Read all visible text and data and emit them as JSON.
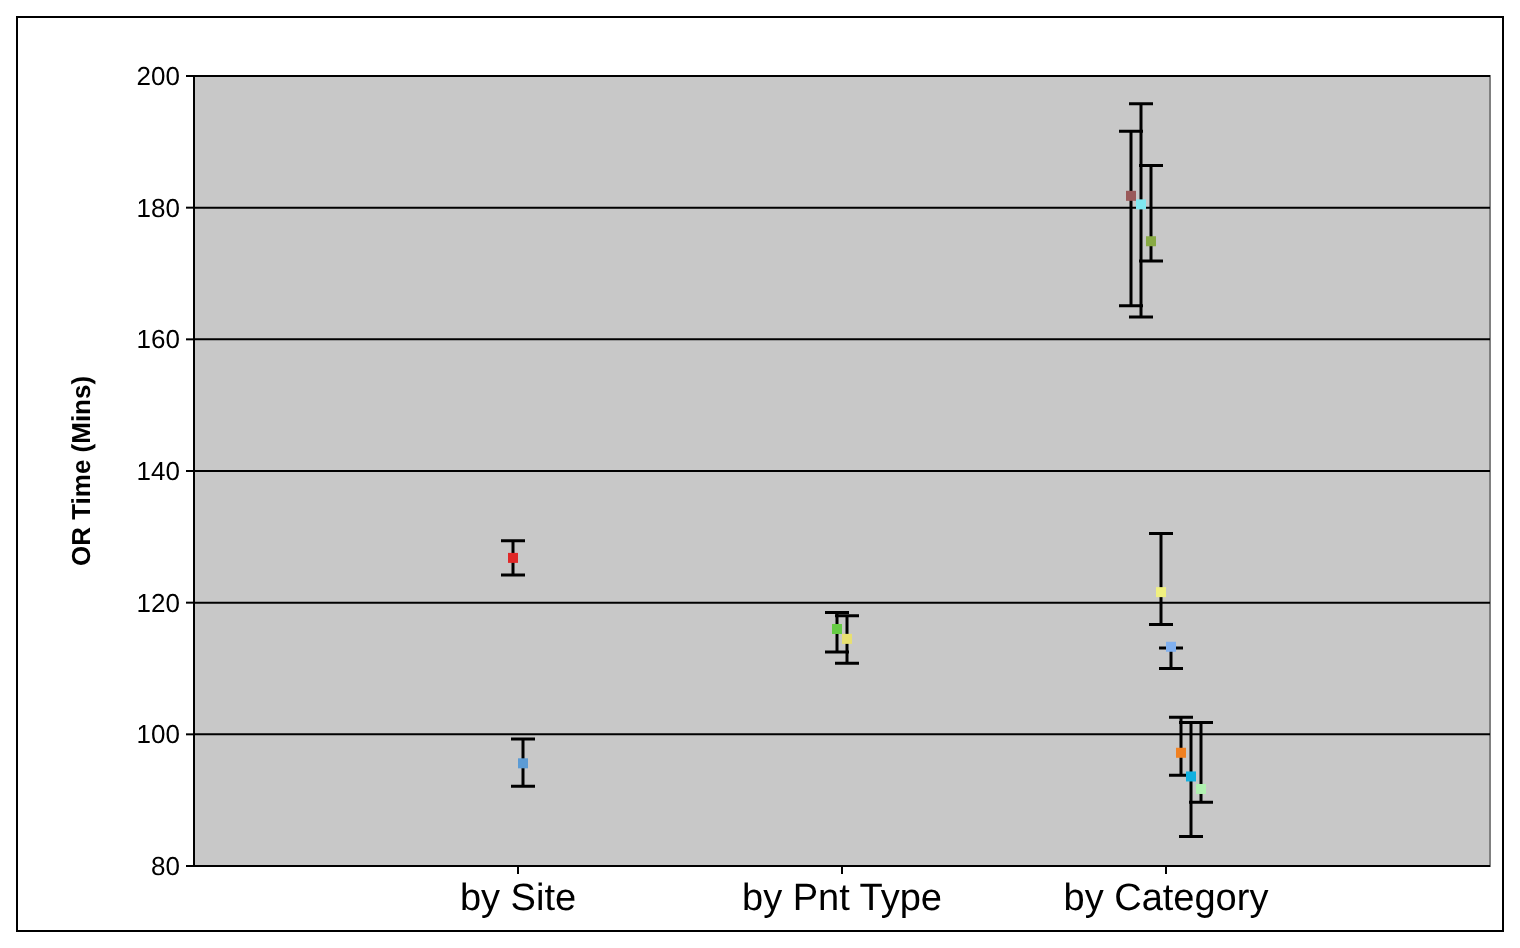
{
  "chart_data": {
    "type": "scatter",
    "ylabel": "OR Time (Mins)",
    "categories": [
      "by Site",
      "by Pnt Type",
      "by Category"
    ],
    "ylim": [
      80,
      200
    ],
    "yticks": [
      80,
      100,
      120,
      140,
      160,
      180,
      200
    ],
    "grid": "y",
    "marker": "square",
    "series": [
      {
        "color": "#e02828",
        "x": [
          "by Site"
        ],
        "values": [
          126.8
        ],
        "errors": [
          [
            124.2,
            129.4
          ]
        ]
      },
      {
        "color": "#5b9bd5",
        "x": [
          "by Site"
        ],
        "values": [
          95.6
        ],
        "errors": [
          [
            92.1,
            99.3
          ]
        ]
      },
      {
        "color": "#66cc44",
        "x": [
          "by Pnt Type"
        ],
        "values": [
          116
        ],
        "errors": [
          [
            112.5,
            118.5
          ]
        ]
      },
      {
        "color": "#e8e070",
        "x": [
          "by Pnt Type"
        ],
        "values": [
          114.5
        ],
        "errors": [
          [
            110.8,
            118
          ]
        ]
      },
      {
        "color": "#9a5a5a",
        "x": [
          "by Category"
        ],
        "values": [
          181.8
        ],
        "errors": [
          [
            165.1,
            191.6
          ]
        ]
      },
      {
        "color": "#80e8f0",
        "x": [
          "by Category"
        ],
        "values": [
          180.5
        ],
        "errors": [
          [
            163.4,
            195.8
          ]
        ]
      },
      {
        "color": "#88aa44",
        "x": [
          "by Category"
        ],
        "values": [
          174.9
        ],
        "errors": [
          [
            171.9,
            186.4
          ]
        ]
      },
      {
        "color": "#f0f080",
        "x": [
          "by Category"
        ],
        "values": [
          121.6
        ],
        "errors": [
          [
            116.7,
            130.5
          ]
        ]
      },
      {
        "color": "#80b0f0",
        "x": [
          "by Category"
        ],
        "values": [
          113.3
        ],
        "errors": [
          [
            110.0,
            113.1
          ]
        ]
      },
      {
        "color": "#f08020",
        "x": [
          "by Category"
        ],
        "values": [
          97.2
        ],
        "errors": [
          [
            93.8,
            102.6
          ]
        ]
      },
      {
        "color": "#10b0e0",
        "x": [
          "by Category"
        ],
        "values": [
          93.6
        ],
        "errors": [
          [
            84.5,
            101.8
          ]
        ]
      },
      {
        "color": "#b0f0b0",
        "x": [
          "by Category"
        ],
        "values": [
          91.7
        ],
        "errors": [
          [
            89.7,
            101.8
          ]
        ]
      }
    ]
  }
}
